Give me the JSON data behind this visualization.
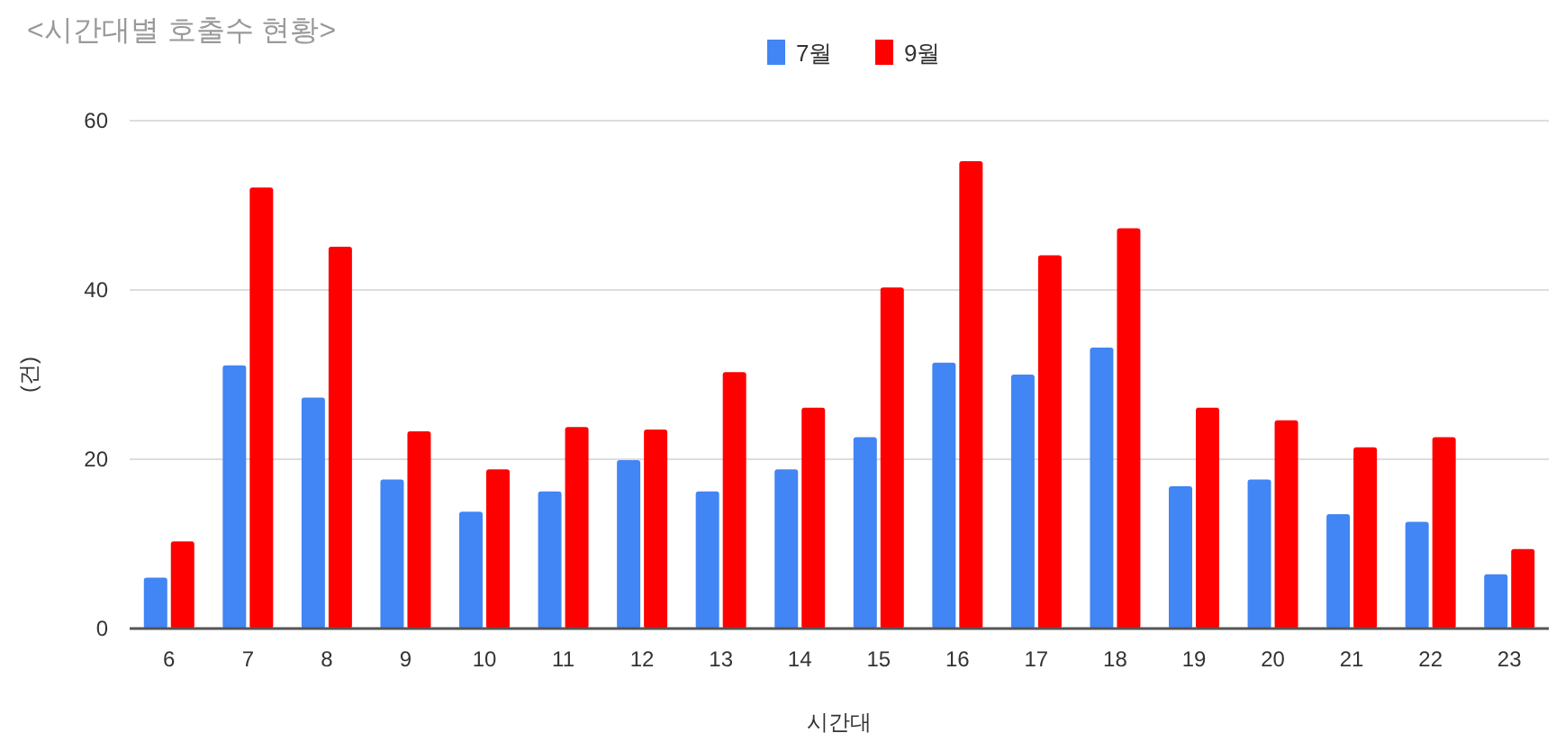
{
  "chart_data": {
    "type": "bar",
    "title": "<시간대별 호출수 현황>",
    "xlabel": "시간대",
    "ylabel": "(건)",
    "categories": [
      "6",
      "7",
      "8",
      "9",
      "10",
      "11",
      "12",
      "13",
      "14",
      "15",
      "16",
      "17",
      "18",
      "19",
      "20",
      "21",
      "22",
      "23"
    ],
    "series": [
      {
        "name": "7월",
        "color": "#4285f4",
        "values": [
          6.0,
          31.1,
          27.3,
          17.6,
          13.8,
          16.2,
          19.9,
          16.2,
          18.8,
          22.6,
          31.4,
          30.0,
          33.2,
          16.8,
          17.6,
          13.5,
          12.6,
          6.4
        ]
      },
      {
        "name": "9월",
        "color": "#ff0000",
        "values": [
          10.3,
          52.1,
          45.1,
          23.3,
          18.8,
          23.8,
          23.5,
          30.3,
          26.1,
          40.3,
          55.2,
          44.1,
          47.3,
          26.1,
          24.6,
          21.4,
          22.6,
          9.4
        ]
      }
    ],
    "ylim": [
      0,
      60
    ],
    "yticks": [
      0,
      20,
      40,
      60
    ],
    "grid": "y",
    "legend": "top"
  }
}
